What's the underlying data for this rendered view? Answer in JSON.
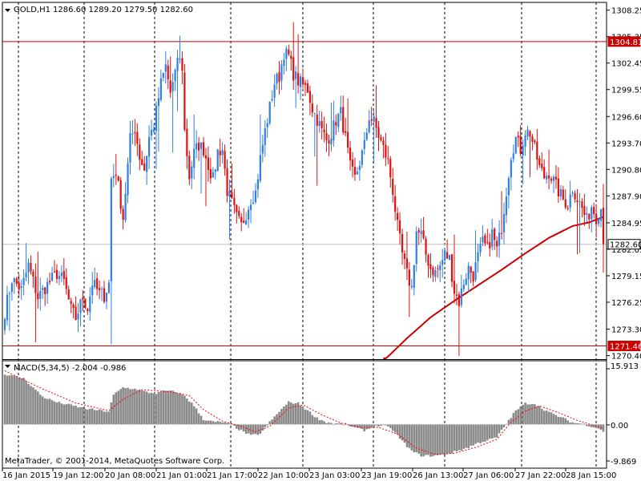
{
  "header": {
    "symbol_text": "GOLD,H1",
    "ohlc_text": "1286.60 1289.20 1279.50 1282.60"
  },
  "indicator": {
    "title": "MACD(5,34,5) -2.004 -0.986",
    "top_label": "15.913",
    "zero_label": "0.00",
    "bottom_label": "-9.869"
  },
  "copyright": "MetaTrader, © 2001-2014, MetaQuotes Software Corp.",
  "colors": {
    "bull": "#2e7fe6",
    "bear": "#e01010",
    "ma_line": "#cc0000",
    "hline": "#cc0000",
    "macd_bar": "#8a8a8a",
    "signal_line": "#ff0000",
    "grid": "#000000",
    "current_price_line": "#c0c0c0"
  },
  "levels": {
    "upper_line": "1304.81",
    "lower_line": "1271.46",
    "current_price": "1282.60"
  },
  "chart_data": {
    "type": "candlestick",
    "symbol": "GOLD",
    "timeframe": "H1",
    "price_axis_labels": [
      "1308.25",
      "1305.35",
      "1302.45",
      "1299.55",
      "1296.60",
      "1293.70",
      "1290.80",
      "1287.90",
      "1284.95",
      "1282.05",
      "1279.15",
      "1276.25",
      "1273.30",
      "1270.40"
    ],
    "price_ticks": [
      1308.25,
      1305.35,
      1302.45,
      1299.55,
      1296.6,
      1293.7,
      1290.8,
      1287.9,
      1284.95,
      1282.05,
      1279.15,
      1276.25,
      1273.3,
      1270.4
    ],
    "ylim": [
      1270.1,
      1309.1
    ],
    "time_labels": [
      "16 Jan 2015",
      "19 Jan 12:00",
      "20 Jan 08:00",
      "21 Jan 01:00",
      "21 Jan 17:00",
      "22 Jan 10:00",
      "23 Jan 03:00",
      "23 Jan 19:00",
      "26 Jan 13:00",
      "27 Jan 06:00",
      "27 Jan 22:00",
      "28 Jan 15:00"
    ],
    "horizontal_lines": [
      1304.81,
      1271.46
    ],
    "current_price": 1282.6,
    "last_candle": {
      "open": 1286.6,
      "high": 1289.2,
      "low": 1279.5,
      "close": 1282.6
    },
    "anchors": [
      [
        0,
        1275.2
      ],
      [
        3,
        1278.8
      ],
      [
        7,
        1277.6
      ],
      [
        10,
        1280.3
      ],
      [
        14,
        1276.8
      ],
      [
        18,
        1278.2
      ],
      [
        22,
        1279.4
      ],
      [
        25,
        1278.5
      ],
      [
        28,
        1275.4
      ],
      [
        30,
        1274.5
      ],
      [
        33,
        1276.8
      ],
      [
        35,
        1275.6
      ],
      [
        37,
        1278.4
      ],
      [
        40,
        1277.2
      ],
      [
        42,
        1277.0
      ],
      [
        44,
        1278.3
      ],
      [
        45,
        1289.8
      ],
      [
        47,
        1290.6
      ],
      [
        50,
        1285.5
      ],
      [
        53,
        1294.1
      ],
      [
        55,
        1295.3
      ],
      [
        57,
        1292.2
      ],
      [
        59,
        1290.8
      ],
      [
        61,
        1294.3
      ],
      [
        63,
        1295.6
      ],
      [
        66,
        1300.2
      ],
      [
        68,
        1302.1
      ],
      [
        70,
        1299.2
      ],
      [
        72,
        1301.0
      ],
      [
        73,
        1303.2
      ],
      [
        75,
        1302.0
      ],
      [
        76,
        1295.0
      ],
      [
        78,
        1290.0
      ],
      [
        80,
        1292.6
      ],
      [
        82,
        1293.5
      ],
      [
        84,
        1293.0
      ],
      [
        86,
        1291.3
      ],
      [
        88,
        1289.7
      ],
      [
        90,
        1292.8
      ],
      [
        92,
        1293.0
      ],
      [
        94,
        1288.5
      ],
      [
        96,
        1287.0
      ],
      [
        98,
        1285.5
      ],
      [
        100,
        1284.6
      ],
      [
        102,
        1286.0
      ],
      [
        104,
        1287.6
      ],
      [
        106,
        1288.3
      ],
      [
        108,
        1292.0
      ],
      [
        110,
        1295.0
      ],
      [
        112,
        1297.6
      ],
      [
        114,
        1300.3
      ],
      [
        116,
        1301.0
      ],
      [
        118,
        1303.6
      ],
      [
        120,
        1303.2
      ],
      [
        122,
        1301.3
      ],
      [
        124,
        1300.5
      ],
      [
        126,
        1300.0
      ],
      [
        128,
        1299.6
      ],
      [
        130,
        1297.5
      ],
      [
        132,
        1296.3
      ],
      [
        134,
        1295.0
      ],
      [
        136,
        1294.0
      ],
      [
        138,
        1294.8
      ],
      [
        140,
        1296.2
      ],
      [
        142,
        1297.0
      ],
      [
        144,
        1294.2
      ],
      [
        146,
        1291.0
      ],
      [
        148,
        1289.8
      ],
      [
        150,
        1291.6
      ],
      [
        152,
        1293.4
      ],
      [
        154,
        1296.6
      ],
      [
        156,
        1296.0
      ],
      [
        158,
        1294.5
      ],
      [
        160,
        1293.1
      ],
      [
        162,
        1291.6
      ],
      [
        164,
        1288.5
      ],
      [
        166,
        1284.5
      ],
      [
        168,
        1281.5
      ],
      [
        170,
        1279.3
      ],
      [
        172,
        1277.8
      ],
      [
        174,
        1284.0
      ],
      [
        176,
        1283.6
      ],
      [
        178,
        1281.5
      ],
      [
        180,
        1280.0
      ],
      [
        182,
        1279.5
      ],
      [
        184,
        1280.2
      ],
      [
        186,
        1281.5
      ],
      [
        188,
        1281.0
      ],
      [
        190,
        1277.5
      ],
      [
        192,
        1276.3
      ],
      [
        194,
        1278.5
      ],
      [
        196,
        1280.0
      ],
      [
        198,
        1279.2
      ],
      [
        200,
        1281.2
      ],
      [
        202,
        1282.8
      ],
      [
        204,
        1282.0
      ],
      [
        206,
        1283.8
      ],
      [
        208,
        1282.0
      ],
      [
        210,
        1284.5
      ],
      [
        212,
        1288.5
      ],
      [
        214,
        1292.5
      ],
      [
        216,
        1294.2
      ],
      [
        218,
        1293.0
      ],
      [
        220,
        1295.0
      ],
      [
        222,
        1294.8
      ],
      [
        224,
        1293.0
      ],
      [
        226,
        1291.0
      ],
      [
        228,
        1290.0
      ],
      [
        230,
        1290.5
      ],
      [
        232,
        1289.5
      ],
      [
        234,
        1288.4
      ],
      [
        236,
        1287.5
      ],
      [
        238,
        1287.0
      ],
      [
        240,
        1288.8
      ],
      [
        242,
        1287.6
      ],
      [
        244,
        1286.5
      ],
      [
        246,
        1285.2
      ],
      [
        248,
        1286.8
      ],
      [
        250,
        1285.6
      ],
      [
        252,
        1286.6
      ],
      [
        253,
        1282.6
      ]
    ],
    "moving_average": [
      [
        160,
        1269.8
      ],
      [
        170,
        1272.3
      ],
      [
        180,
        1274.6
      ],
      [
        190,
        1276.4
      ],
      [
        200,
        1278.1
      ],
      [
        210,
        1279.8
      ],
      [
        220,
        1281.6
      ],
      [
        230,
        1283.3
      ],
      [
        240,
        1284.6
      ],
      [
        247,
        1285.0
      ],
      [
        253,
        1285.6
      ]
    ],
    "macd": {
      "name": "MACD(5,34,5)",
      "main": -2.004,
      "signal": -0.986,
      "ylim": [
        -9.869,
        15.913
      ],
      "histogram_anchors": [
        [
          0,
          13.6
        ],
        [
          8,
          12.4
        ],
        [
          16,
          7.5
        ],
        [
          22,
          6.0
        ],
        [
          28,
          5.2
        ],
        [
          34,
          4.3
        ],
        [
          40,
          3.8
        ],
        [
          44,
          3.5
        ],
        [
          46,
          8.0
        ],
        [
          50,
          10.0
        ],
        [
          56,
          9.5
        ],
        [
          60,
          8.7
        ],
        [
          64,
          8.4
        ],
        [
          68,
          9.1
        ],
        [
          72,
          8.8
        ],
        [
          76,
          7.8
        ],
        [
          80,
          5.0
        ],
        [
          84,
          1.4
        ],
        [
          88,
          0.7
        ],
        [
          92,
          0.6
        ],
        [
          96,
          -0.2
        ],
        [
          100,
          -1.7
        ],
        [
          104,
          -3.0
        ],
        [
          108,
          -2.5
        ],
        [
          112,
          0.6
        ],
        [
          116,
          3.5
        ],
        [
          120,
          6.0
        ],
        [
          124,
          5.7
        ],
        [
          128,
          3.8
        ],
        [
          132,
          1.7
        ],
        [
          136,
          0.6
        ],
        [
          140,
          0.2
        ],
        [
          144,
          0.1
        ],
        [
          148,
          -0.9
        ],
        [
          152,
          -1.6
        ],
        [
          156,
          -0.6
        ],
        [
          160,
          -0.2
        ],
        [
          164,
          -1.5
        ],
        [
          168,
          -4.5
        ],
        [
          172,
          -7.2
        ],
        [
          176,
          -8.4
        ],
        [
          180,
          -8.5
        ],
        [
          184,
          -8.3
        ],
        [
          188,
          -7.8
        ],
        [
          192,
          -7.0
        ],
        [
          196,
          -6.2
        ],
        [
          200,
          -5.0
        ],
        [
          204,
          -4.3
        ],
        [
          208,
          -3.5
        ],
        [
          212,
          0.2
        ],
        [
          216,
          3.7
        ],
        [
          220,
          5.7
        ],
        [
          224,
          5.6
        ],
        [
          228,
          4.0
        ],
        [
          232,
          2.7
        ],
        [
          236,
          1.7
        ],
        [
          240,
          0.5
        ],
        [
          244,
          0.2
        ],
        [
          248,
          -0.5
        ],
        [
          252,
          -1.3
        ],
        [
          253,
          -2.0
        ]
      ],
      "signal_anchors": [
        [
          0,
          14.5
        ],
        [
          16,
          9.6
        ],
        [
          30,
          5.8
        ],
        [
          44,
          3.7
        ],
        [
          50,
          6.8
        ],
        [
          58,
          9.4
        ],
        [
          70,
          8.8
        ],
        [
          78,
          7.8
        ],
        [
          84,
          4.0
        ],
        [
          92,
          0.9
        ],
        [
          100,
          -0.5
        ],
        [
          106,
          -2.0
        ],
        [
          112,
          -0.5
        ],
        [
          120,
          4.4
        ],
        [
          126,
          5.3
        ],
        [
          134,
          2.6
        ],
        [
          142,
          0.4
        ],
        [
          150,
          -0.8
        ],
        [
          158,
          -0.8
        ],
        [
          166,
          -2.6
        ],
        [
          174,
          -6.4
        ],
        [
          182,
          -8.1
        ],
        [
          190,
          -7.8
        ],
        [
          200,
          -6.0
        ],
        [
          208,
          -4.0
        ],
        [
          214,
          0.6
        ],
        [
          220,
          3.6
        ],
        [
          226,
          5.0
        ],
        [
          234,
          3.2
        ],
        [
          242,
          1.1
        ],
        [
          253,
          -1.0
        ]
      ]
    }
  }
}
